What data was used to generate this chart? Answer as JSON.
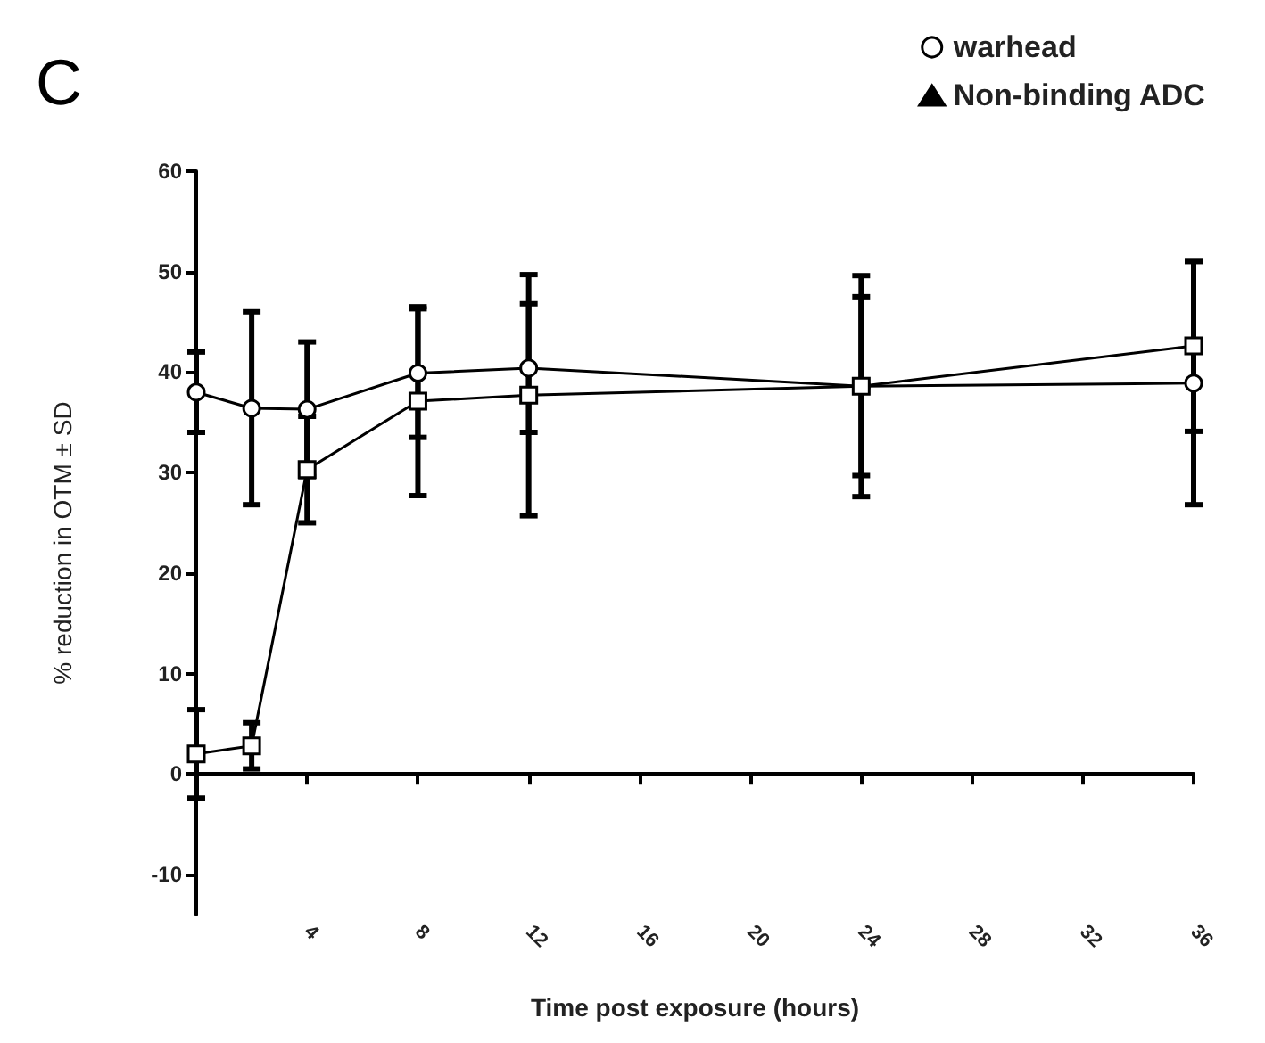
{
  "chart_data": {
    "type": "line",
    "xlabel": "Time post exposure (hours)",
    "ylabel": "% reduction in OTM ± SD",
    "annotations": [
      "C"
    ],
    "x": [
      0,
      2,
      4,
      8,
      12,
      24,
      36
    ],
    "series": [
      {
        "name": "warhead",
        "color": "#000000",
        "marker": "circle",
        "values": [
          38,
          36.4,
          36.3,
          39.9,
          40.4,
          38.6,
          38.9
        ],
        "errors": [
          4,
          9.6,
          6.7,
          6.4,
          6.4,
          8.9,
          12.1
        ]
      },
      {
        "color": "#000000",
        "marker": "square",
        "values": [
          2.0,
          2.8,
          30.3,
          37.1,
          37.7,
          38.6,
          42.6
        ],
        "errors": [
          4.4,
          2.3,
          5.3,
          9.4,
          12,
          11,
          8.5
        ]
      },
      {
        "name": "Non-binding ADC",
        "color": "#000000",
        "marker": "triangle",
        "values": [
          null,
          null,
          null,
          null,
          null,
          null,
          null
        ]
      }
    ],
    "xlim": [
      0,
      36
    ],
    "xticks": [
      4,
      8,
      12,
      16,
      20,
      24,
      28,
      32,
      36
    ],
    "ylim": [
      -14,
      60
    ],
    "yticks": [
      -10,
      0,
      10,
      20,
      30,
      40,
      50,
      60
    ],
    "legend": "top right",
    "line_style": "solid"
  }
}
